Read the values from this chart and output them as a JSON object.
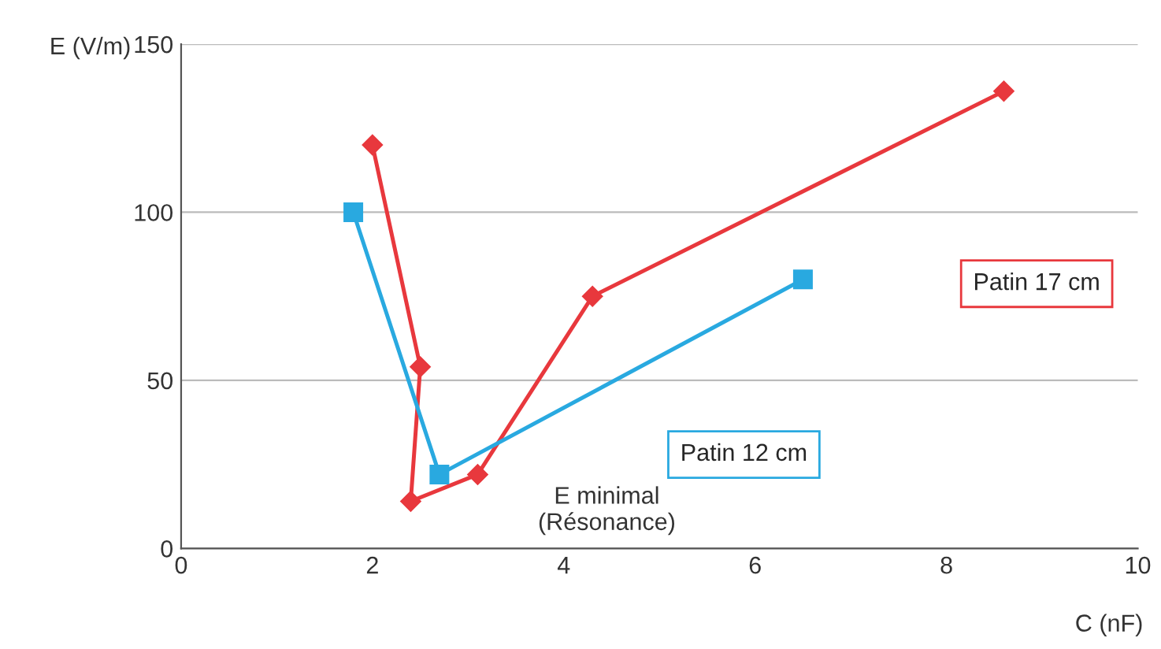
{
  "chart_data": {
    "type": "line",
    "xlabel": "C (nF)",
    "ylabel": "E (V/m)",
    "xlim": [
      0,
      10
    ],
    "xticks": [
      0,
      2,
      4,
      6,
      8,
      10
    ],
    "ylim": [
      0,
      150
    ],
    "yticks": [
      0,
      50,
      100,
      150
    ],
    "grid": "y",
    "series": [
      {
        "name": "Patin 17 cm",
        "color": "#e8383d",
        "marker": "diamond",
        "x": [
          2,
          2.5,
          2.4,
          3.1,
          4.3,
          8.6
        ],
        "values": [
          120,
          54,
          14,
          22,
          75,
          136
        ]
      },
      {
        "name": "Patin 12 cm",
        "color": "#29a9e0",
        "marker": "square",
        "x": [
          1.8,
          2.7,
          6.5
        ],
        "values": [
          100,
          22,
          80
        ]
      }
    ],
    "annotations": [
      "E minimal\n(Résonance)"
    ]
  }
}
